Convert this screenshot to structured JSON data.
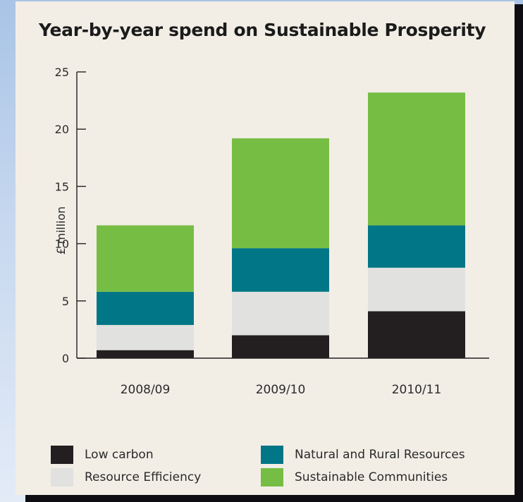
{
  "colors": {
    "low_carbon": "#231f20",
    "resource_efficiency": "#e1e1e0",
    "natural_rural": "#007686",
    "sustainable_communities": "#76bd43",
    "axis": "#222222",
    "text": "#2a2a2a"
  },
  "chart_data": {
    "type": "bar",
    "stacked": true,
    "title": "Year-by-year spend on Sustainable Prosperity",
    "ylabel": "£ million",
    "xlabel": "",
    "ylim": [
      0,
      25
    ],
    "yticks": [
      0,
      5,
      10,
      15,
      20,
      25
    ],
    "categories": [
      "2008/09",
      "2009/10",
      "2010/11"
    ],
    "series": [
      {
        "name": "Low carbon",
        "values": [
          0.7,
          2.0,
          4.1
        ]
      },
      {
        "name": "Resource Efficiency",
        "values": [
          2.2,
          3.8,
          3.8
        ]
      },
      {
        "name": "Natural and Rural Resources",
        "values": [
          2.9,
          3.8,
          3.7
        ]
      },
      {
        "name": "Sustainable Communities",
        "values": [
          5.8,
          9.6,
          11.6
        ]
      }
    ],
    "legend_position": "bottom",
    "grid": false
  }
}
